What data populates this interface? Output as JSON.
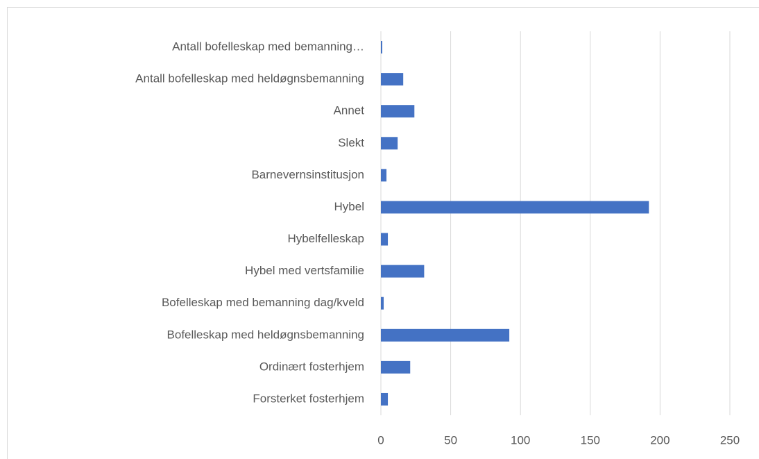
{
  "chart_data": {
    "type": "bar",
    "orientation": "horizontal",
    "categories": [
      "Antall bofelleskap med bemanning…",
      "Antall bofelleskap med heldøgnsbemanning",
      "Annet",
      "Slekt",
      "Barnevernsinstitusjon",
      "Hybel",
      "Hybelfelleskap",
      "Hybel med vertsfamilie",
      "Bofelleskap med bemanning dag/kveld",
      "Bofelleskap med heldøgnsbemanning",
      "Ordinært fosterhjem",
      "Forsterket fosterhjem"
    ],
    "values": [
      1,
      16,
      24,
      12,
      4,
      192,
      5,
      31,
      2,
      92,
      21,
      5
    ],
    "color": "#4472c4",
    "xlim": [
      0,
      250
    ],
    "xticks": [
      0,
      50,
      100,
      150,
      200,
      250
    ],
    "grid": true
  }
}
